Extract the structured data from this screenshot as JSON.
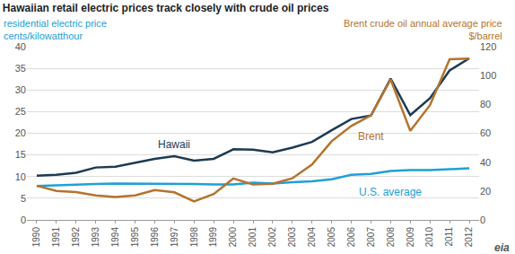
{
  "chart_data": {
    "type": "line",
    "title": "Hawaiian retail electric prices track closely with crude oil prices",
    "y_label": [
      "residential electric price",
      "cents/kilowatthour"
    ],
    "y2_label": [
      "Brent crude oil annual average price",
      "$/barrel"
    ],
    "categories": [
      "1990",
      "1991",
      "1992",
      "1993",
      "1994",
      "1995",
      "1996",
      "1997",
      "1998",
      "1999",
      "2000",
      "2001",
      "2002",
      "2003",
      "2004",
      "2005",
      "2006",
      "2007",
      "2008",
      "2009",
      "2010",
      "2011",
      "2012"
    ],
    "series": [
      {
        "name": "Hawaii",
        "color": "#1d3a52",
        "axis": "y",
        "values": [
          10.2,
          10.4,
          10.9,
          12.1,
          12.3,
          13.2,
          14.1,
          14.7,
          13.7,
          14.1,
          16.3,
          16.2,
          15.6,
          16.7,
          18.0,
          20.7,
          23.3,
          24.1,
          32.6,
          24.2,
          28.1,
          34.5,
          37.3
        ]
      },
      {
        "name": "U.S. average",
        "color": "#1ea0d8",
        "axis": "y",
        "values": [
          7.8,
          8.0,
          8.1,
          8.3,
          8.4,
          8.4,
          8.4,
          8.4,
          8.3,
          8.2,
          8.2,
          8.6,
          8.4,
          8.7,
          8.9,
          9.4,
          10.4,
          10.6,
          11.3,
          11.5,
          11.5,
          11.7,
          11.9
        ]
      },
      {
        "name": "Brent",
        "color": "#b3742e",
        "axis": "y2",
        "values": [
          23.7,
          20.0,
          19.3,
          17.0,
          15.8,
          17.0,
          20.6,
          19.1,
          12.8,
          17.9,
          28.7,
          24.5,
          25.0,
          28.8,
          38.3,
          54.5,
          65.1,
          72.4,
          97.3,
          61.7,
          79.5,
          111.3,
          111.7
        ]
      }
    ],
    "annotations": [
      {
        "text": "Hawaii",
        "x": "1997",
        "y": 17.5,
        "axis": "y",
        "color": "#1d3a52"
      },
      {
        "text": "Brent",
        "x": "2007",
        "y": 58,
        "axis": "y2",
        "color": "#b3742e"
      },
      {
        "text": "U.S. average",
        "x": "2008",
        "y": 6.5,
        "axis": "y",
        "color": "#1ea0d8"
      }
    ],
    "logo": "eia",
    "ylim": [
      0,
      40
    ],
    "yticks": [
      0,
      5,
      10,
      15,
      20,
      25,
      30,
      35,
      40
    ],
    "y2lim": [
      0,
      120
    ],
    "y2ticks": [
      0,
      20,
      40,
      60,
      80,
      100,
      120
    ],
    "grid": true
  }
}
